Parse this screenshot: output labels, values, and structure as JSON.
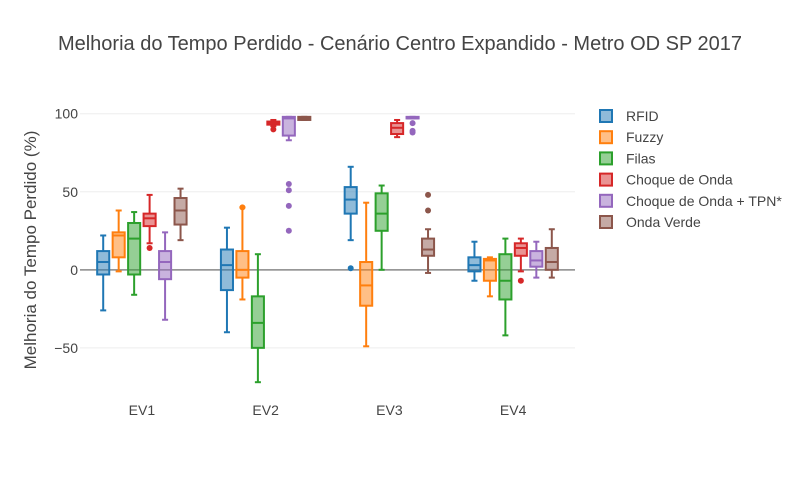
{
  "chart_data": {
    "type": "box",
    "title": "Melhoria do Tempo Perdido - Cenário Centro Expandido - Metro OD SP 2017",
    "ylabel": "Melhoria do Tempo Perdido (%)",
    "xlabel": "",
    "ylim": [
      -77,
      112
    ],
    "yticks": [
      -50,
      0,
      50,
      100
    ],
    "yticklabels": [
      "−50",
      "0",
      "50",
      "100"
    ],
    "grid": true,
    "legend_position": "right",
    "categories": [
      "EV1",
      "EV2",
      "EV3",
      "EV4"
    ],
    "series": [
      {
        "name": "RFID",
        "color": "#1f77b4",
        "boxes": [
          {
            "min": -26,
            "q1": -3,
            "median": 5,
            "q3": 12,
            "max": 22,
            "outliers": []
          },
          {
            "min": -40,
            "q1": -13,
            "median": 3,
            "q3": 13,
            "max": 27,
            "outliers": []
          },
          {
            "min": 19,
            "q1": 36,
            "median": 45,
            "q3": 53,
            "max": 66,
            "outliers": [
              1
            ]
          },
          {
            "min": -7,
            "q1": -1,
            "median": 3,
            "q3": 8,
            "max": 18,
            "outliers": []
          }
        ]
      },
      {
        "name": "Fuzzy",
        "color": "#ff7f0e",
        "boxes": [
          {
            "min": -1,
            "q1": 8,
            "median": 22,
            "q3": 24,
            "max": 38,
            "outliers": []
          },
          {
            "min": -19,
            "q1": -5,
            "median": 0,
            "q3": 12,
            "max": 40,
            "outliers": [
              40
            ]
          },
          {
            "min": -49,
            "q1": -23,
            "median": -10,
            "q3": 5,
            "max": 43,
            "outliers": []
          },
          {
            "min": -17,
            "q1": -7,
            "median": 6,
            "q3": 7,
            "max": 8,
            "outliers": []
          }
        ]
      },
      {
        "name": "Filas",
        "color": "#2ca02c",
        "boxes": [
          {
            "min": -16,
            "q1": -3,
            "median": 20,
            "q3": 30,
            "max": 37,
            "outliers": []
          },
          {
            "min": -72,
            "q1": -50,
            "median": -34,
            "q3": -17,
            "max": 10,
            "outliers": []
          },
          {
            "min": 0,
            "q1": 25,
            "median": 36,
            "q3": 49,
            "max": 54,
            "outliers": []
          },
          {
            "min": -42,
            "q1": -19,
            "median": -7,
            "q3": 10,
            "max": 20,
            "outliers": []
          }
        ]
      },
      {
        "name": "Choque de Onda",
        "color": "#d62728",
        "boxes": [
          {
            "min": 17,
            "q1": 28,
            "median": 33,
            "q3": 36,
            "max": 48,
            "outliers": [
              14
            ]
          },
          {
            "min": 92,
            "q1": 93,
            "median": 94,
            "q3": 95,
            "max": 96,
            "outliers": [
              90
            ]
          },
          {
            "min": 85,
            "q1": 87,
            "median": 91,
            "q3": 94,
            "max": 96,
            "outliers": []
          },
          {
            "min": -1,
            "q1": 9,
            "median": 14,
            "q3": 17,
            "max": 20,
            "outliers": [
              -7
            ]
          }
        ]
      },
      {
        "name": "Choque de Onda + TPN*",
        "color": "#9467bd",
        "boxes": [
          {
            "min": -32,
            "q1": -6,
            "median": 5,
            "q3": 12,
            "max": 24,
            "outliers": []
          },
          {
            "min": 83,
            "q1": 86,
            "median": 97,
            "q3": 98,
            "max": 98,
            "outliers": [
              55,
              51,
              41,
              25
            ]
          },
          {
            "min": 97,
            "q1": 97,
            "median": 97,
            "q3": 98,
            "max": 98,
            "outliers": [
              94,
              88,
              89
            ]
          },
          {
            "min": -5,
            "q1": 2,
            "median": 6,
            "q3": 12,
            "max": 18,
            "outliers": []
          }
        ]
      },
      {
        "name": "Onda Verde",
        "color": "#8c564b",
        "boxes": [
          {
            "min": 19,
            "q1": 29,
            "median": 38,
            "q3": 46,
            "max": 52,
            "outliers": []
          },
          {
            "min": 96,
            "q1": 96,
            "median": 97,
            "q3": 98,
            "max": 98,
            "outliers": []
          },
          {
            "min": -2,
            "q1": 9,
            "median": 13,
            "q3": 20,
            "max": 26,
            "outliers": [
              48,
              38
            ]
          },
          {
            "min": -5,
            "q1": 0,
            "median": 5,
            "q3": 14,
            "max": 26,
            "outliers": []
          }
        ]
      }
    ]
  }
}
